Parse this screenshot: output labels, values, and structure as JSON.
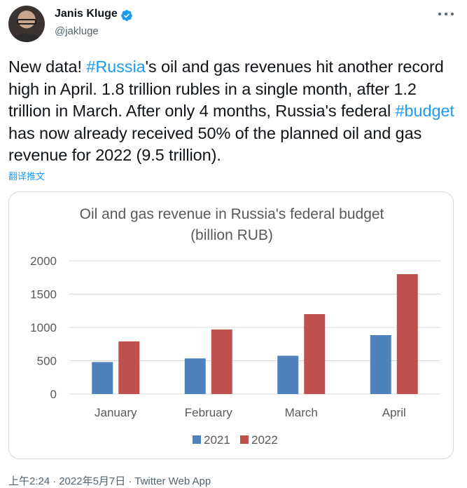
{
  "author": {
    "name": "Janis Kluge",
    "handle": "@jakluge",
    "verified": true
  },
  "tweet": {
    "segments": [
      {
        "text": "New data! ",
        "type": "text"
      },
      {
        "text": "#Russia",
        "type": "hashtag"
      },
      {
        "text": "'s oil and gas revenues hit another record high in April. 1.8 trillion rubles in a single month, after 1.2 trillion in March. After only 4 months, Russia's federal ",
        "type": "text"
      },
      {
        "text": "#budget",
        "type": "hashtag"
      },
      {
        "text": " has now already received 50% of the planned oil and gas revenue for 2022 (9.5 trillion).",
        "type": "text"
      }
    ],
    "translate_label": "翻译推文"
  },
  "meta": {
    "time": "上午2:24",
    "date": "2022年5月7日",
    "source": "Twitter Web App",
    "separator": "·"
  },
  "colors": {
    "accent": "#1d9bf0",
    "series_2021": "#4f81bd",
    "series_2022": "#c0504d"
  },
  "chart_data": {
    "type": "bar",
    "title": "Oil and gas revenue in Russia's federal budget",
    "subtitle": "(billion RUB)",
    "categories": [
      "January",
      "February",
      "March",
      "April"
    ],
    "series": [
      {
        "name": "2021",
        "values": [
          480,
          535,
          575,
          885
        ],
        "color": "#4f81bd"
      },
      {
        "name": "2022",
        "values": [
          790,
          970,
          1200,
          1800
        ],
        "color": "#c0504d"
      }
    ],
    "ylim": [
      0,
      2000
    ],
    "yticks": [
      0,
      500,
      1000,
      1500,
      2000
    ],
    "grid": true,
    "legend": "bottom"
  }
}
